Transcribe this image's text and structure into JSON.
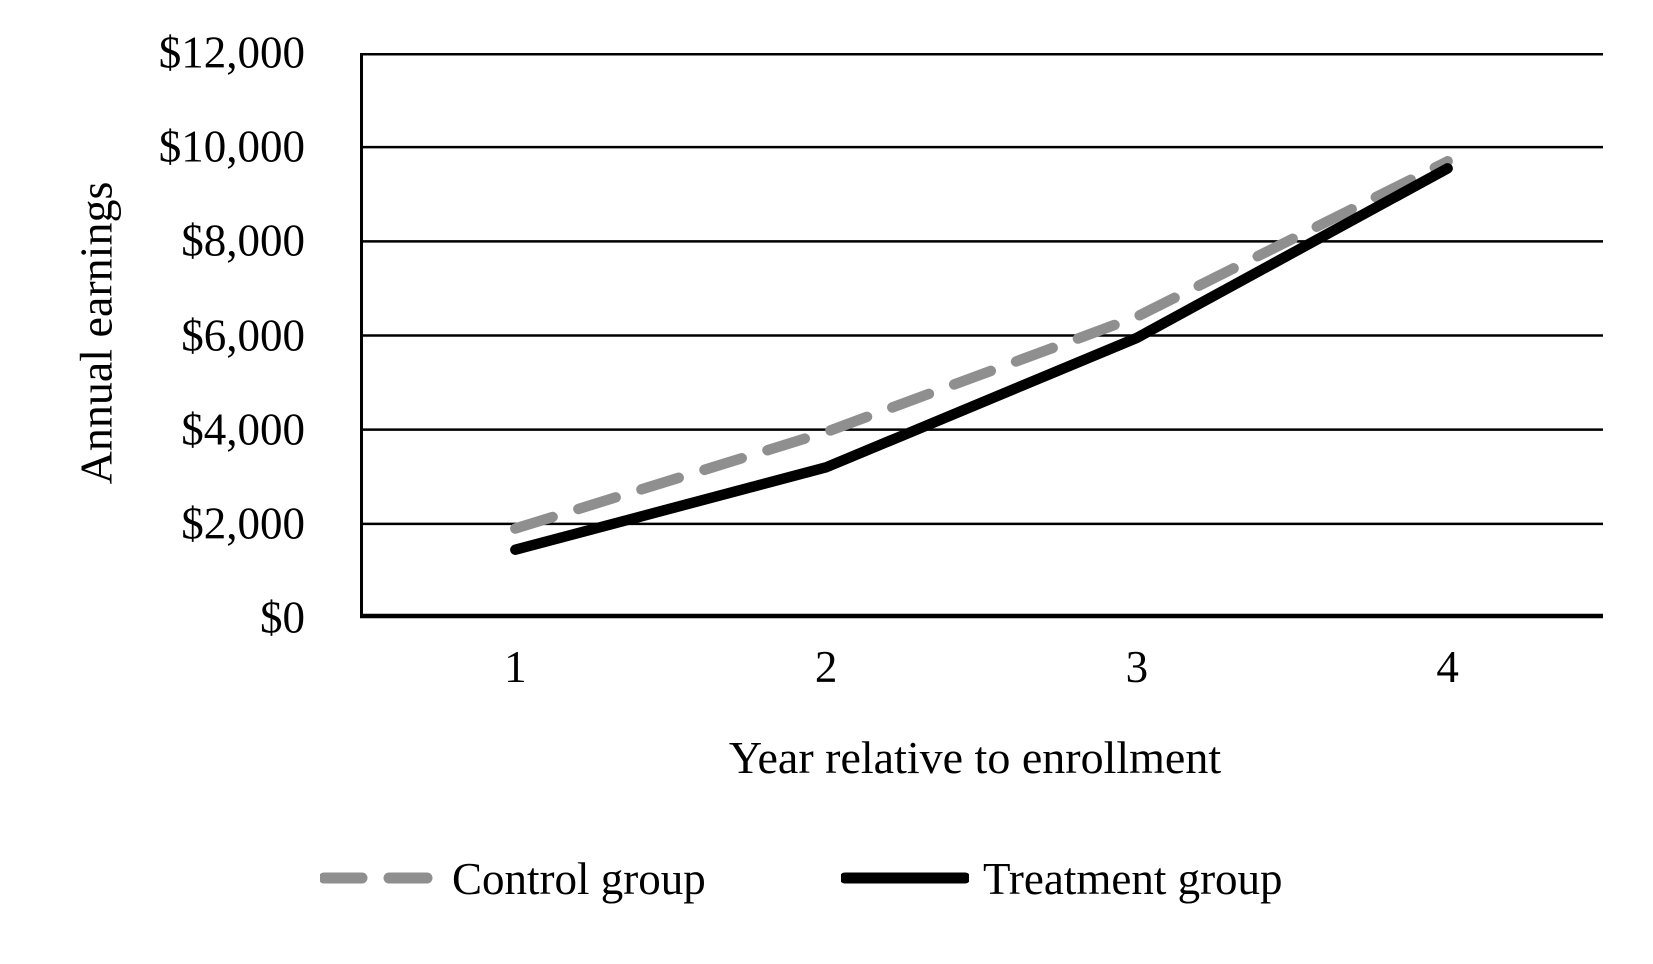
{
  "page": {
    "background": "#ffffff"
  },
  "chart_data": {
    "type": "line",
    "x": [
      1,
      2,
      3,
      4
    ],
    "series": [
      {
        "name": "Control group",
        "values": [
          1900,
          3950,
          6400,
          9700
        ],
        "color": "#8f8f8f",
        "style": "dashed"
      },
      {
        "name": "Treatment group",
        "values": [
          1450,
          3200,
          5950,
          9550
        ],
        "color": "#000000",
        "style": "solid"
      }
    ],
    "xlabel": "Year relative to enrollment",
    "ylabel": "Annual earnings",
    "ylim": [
      0,
      12000
    ],
    "ytick_step": 2000,
    "ytick_labels": [
      "$0",
      "$2,000",
      "$4,000",
      "$6,000",
      "$8,000",
      "$10,000",
      "$12,000"
    ],
    "grid": "horizontal-only",
    "legend_position": "bottom-center",
    "axis_color": "#000000",
    "gridline_color": "#000000"
  }
}
